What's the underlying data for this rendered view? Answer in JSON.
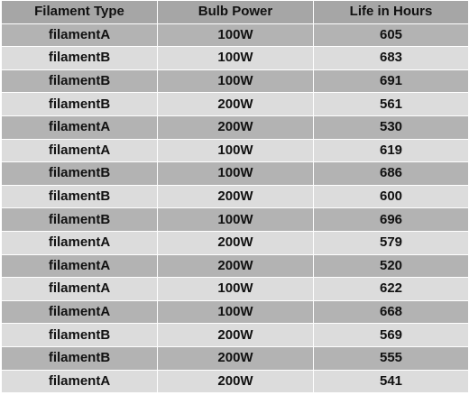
{
  "table": {
    "headers": [
      "Filament Type",
      "Bulb Power",
      "Life in Hours"
    ],
    "rows": [
      [
        "filamentA",
        "100W",
        "605"
      ],
      [
        "filamentB",
        "100W",
        "683"
      ],
      [
        "filamentB",
        "100W",
        "691"
      ],
      [
        "filamentB",
        "200W",
        "561"
      ],
      [
        "filamentA",
        "200W",
        "530"
      ],
      [
        "filamentA",
        "100W",
        "619"
      ],
      [
        "filamentB",
        "100W",
        "686"
      ],
      [
        "filamentB",
        "200W",
        "600"
      ],
      [
        "filamentB",
        "100W",
        "696"
      ],
      [
        "filamentA",
        "200W",
        "579"
      ],
      [
        "filamentA",
        "200W",
        "520"
      ],
      [
        "filamentA",
        "100W",
        "622"
      ],
      [
        "filamentA",
        "100W",
        "668"
      ],
      [
        "filamentB",
        "200W",
        "569"
      ],
      [
        "filamentB",
        "200W",
        "555"
      ],
      [
        "filamentA",
        "200W",
        "541"
      ]
    ]
  },
  "colors": {
    "header_bg": "#a6a6a6",
    "row_dark": "#b3b3b3",
    "row_light": "#dcdcdc",
    "text": "#111111",
    "border": "#ffffff"
  }
}
